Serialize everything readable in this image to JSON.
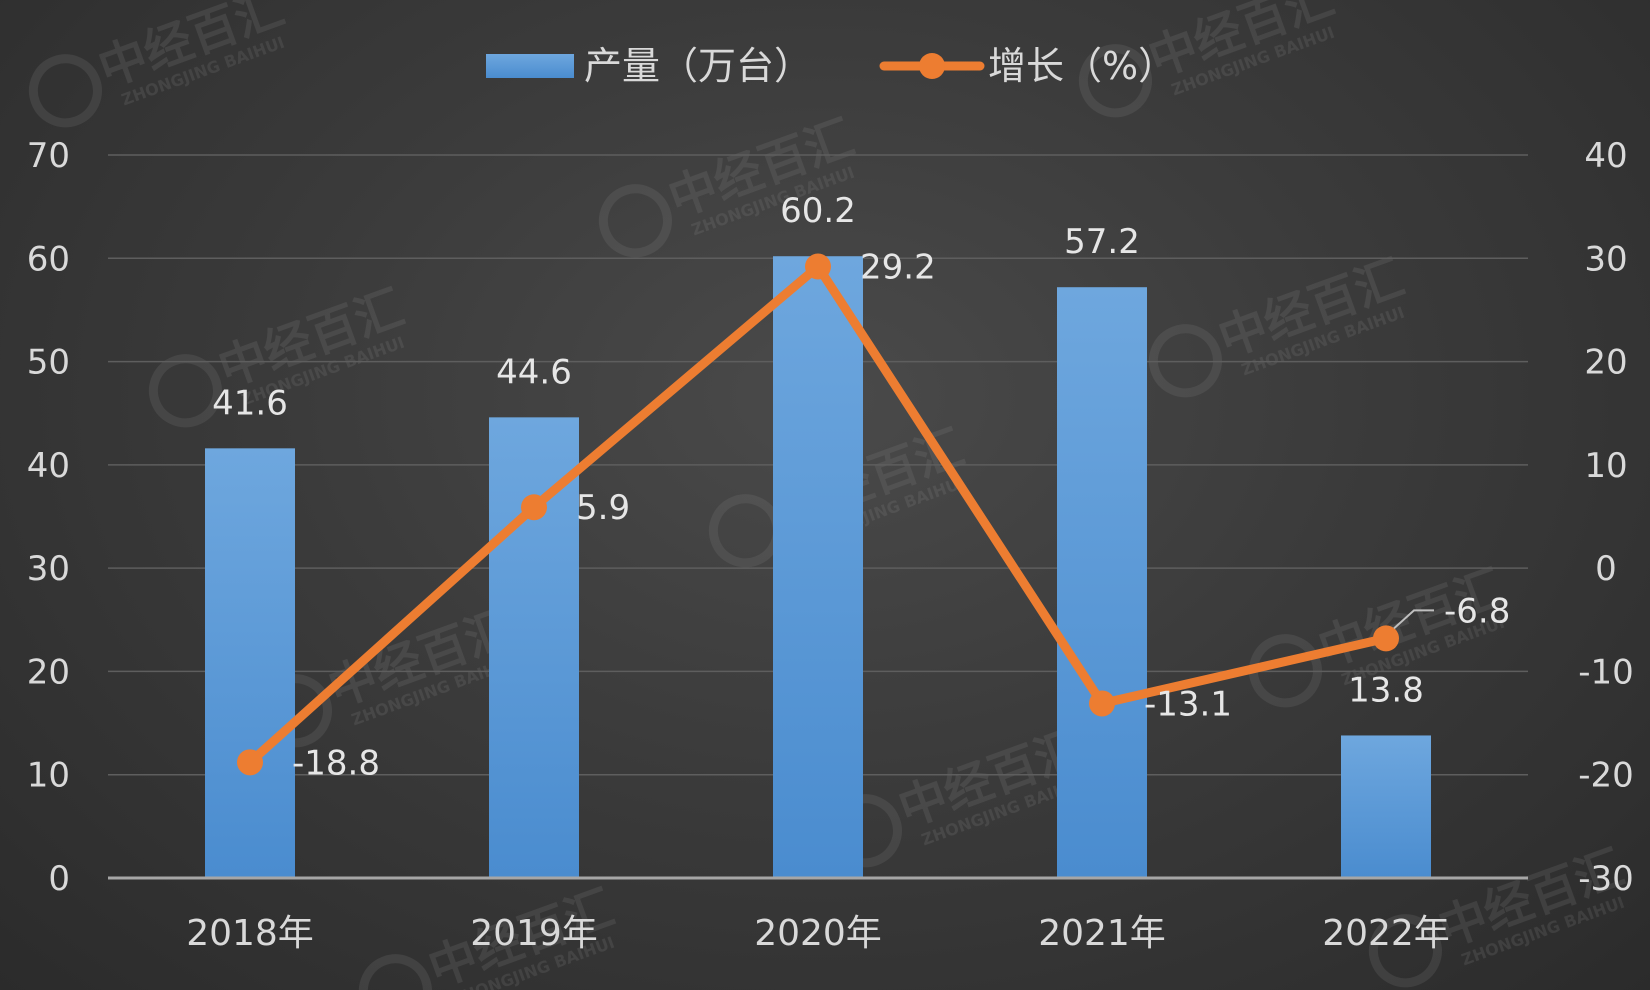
{
  "chart_data": {
    "type": "bar",
    "categories": [
      "2018年",
      "2019年",
      "2020年",
      "2021年",
      "2022年"
    ],
    "series": [
      {
        "name": "产量（万台）",
        "type": "bar",
        "axis": "left",
        "values": [
          41.6,
          44.6,
          60.2,
          57.2,
          13.8
        ],
        "color": "#5b9bd5"
      },
      {
        "name": "增长（%）",
        "type": "line",
        "axis": "right",
        "values": [
          -18.8,
          5.9,
          29.2,
          -13.1,
          -6.8
        ],
        "color": "#ed7d31"
      }
    ],
    "y_left": {
      "min": 0,
      "max": 70,
      "step": 10,
      "ticks": [
        "0",
        "10",
        "20",
        "30",
        "40",
        "50",
        "60",
        "70"
      ]
    },
    "y_right": {
      "min": -30,
      "max": 40,
      "step": 10,
      "ticks": [
        "-30",
        "-20",
        "-10",
        "0",
        "10",
        "20",
        "30",
        "40"
      ]
    },
    "bar_labels": [
      "41.6",
      "44.6",
      "60.2",
      "57.2",
      "13.8"
    ],
    "line_labels": [
      "-18.8",
      "5.9",
      "29.2",
      "-13.1",
      "-6.8"
    ],
    "grid": true,
    "legend_position": "top-center"
  },
  "watermark": {
    "text": "中经百汇",
    "sub": "ZHONGJING BAIHUI",
    "logo": "Z-logo"
  }
}
